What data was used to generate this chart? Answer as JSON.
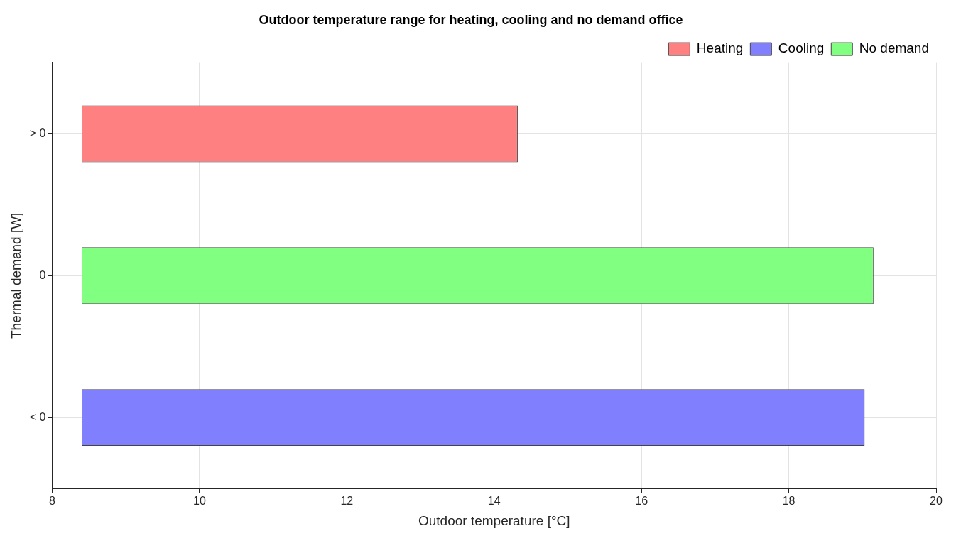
{
  "chart_data": {
    "type": "bar",
    "orientation": "horizontal",
    "title": "Outdoor temperature range for heating, cooling and no demand office",
    "xlabel": "Outdoor temperature [°C]",
    "ylabel": "Thermal demand [W]",
    "categories": [
      "> 0",
      "0",
      "< 0"
    ],
    "series": [
      {
        "name": "Heating",
        "color": "#ff8080",
        "values": [
          5.92,
          null,
          null
        ],
        "base": [
          8.4,
          null,
          null
        ]
      },
      {
        "name": "Cooling",
        "color": "#8080ff",
        "values": [
          null,
          null,
          10.63
        ],
        "base": [
          null,
          null,
          8.4
        ]
      },
      {
        "name": "No demand",
        "color": "#80ff80",
        "values": [
          null,
          10.75,
          null
        ],
        "base": [
          null,
          8.4,
          null
        ]
      }
    ],
    "xlim": [
      8,
      20
    ],
    "xticks": [
      8,
      10,
      12,
      14,
      16,
      18,
      20
    ],
    "grid": true,
    "legend": "top right"
  }
}
